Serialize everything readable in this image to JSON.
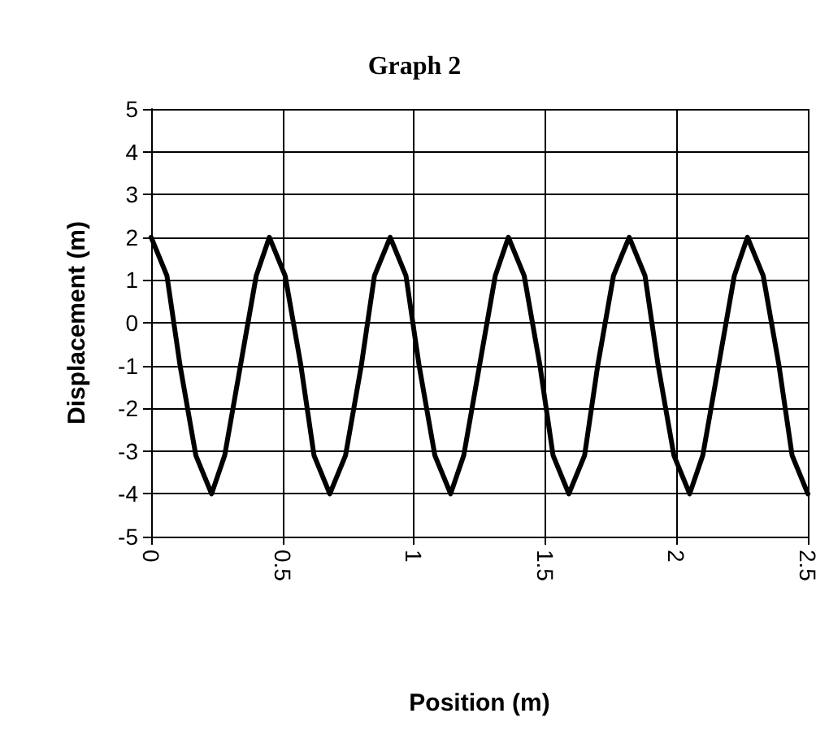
{
  "chart_data": {
    "type": "line",
    "title": "Graph 2",
    "xlabel": "Position (m)",
    "ylabel": "Displacement (m)",
    "series": [
      {
        "color": "#000000",
        "x": [
          0,
          0.06,
          0.11,
          0.17,
          0.23,
          0.28,
          0.34,
          0.4,
          0.45,
          0.51,
          0.57,
          0.62,
          0.68,
          0.74,
          0.8,
          0.85,
          0.91,
          0.97,
          1.02,
          1.08,
          1.14,
          1.19,
          1.25,
          1.31,
          1.36,
          1.42,
          1.48,
          1.53,
          1.59,
          1.65,
          1.7,
          1.76,
          1.82,
          1.88,
          1.93,
          1.99,
          2.05,
          2.1,
          2.16,
          2.22,
          2.27,
          2.33,
          2.39,
          2.44,
          2.5
        ],
        "values": [
          2,
          1.1,
          -1,
          -3.1,
          -4,
          -3.1,
          -1,
          1.1,
          2,
          1.1,
          -1,
          -3.1,
          -4,
          -3.1,
          -1,
          1.1,
          2,
          1.1,
          -1,
          -3.1,
          -4,
          -3.1,
          -1,
          1.1,
          2,
          1.1,
          -1,
          -3.1,
          -4,
          -3.1,
          -1,
          1.1,
          2,
          1.1,
          -1,
          -3.1,
          -4,
          -3.1,
          -1,
          1.1,
          2,
          1.1,
          -1,
          -3.1,
          -4
        ]
      }
    ],
    "xlim": [
      0,
      2.5
    ],
    "xticks": [
      0,
      0.5,
      1,
      1.5,
      2,
      2.5
    ],
    "ylim": [
      -5,
      5
    ],
    "yticks": [
      -5,
      -4,
      -3,
      -2,
      -1,
      0,
      1,
      2,
      3,
      4,
      5
    ],
    "grid": true,
    "marker": "none",
    "line_style": "solid"
  }
}
